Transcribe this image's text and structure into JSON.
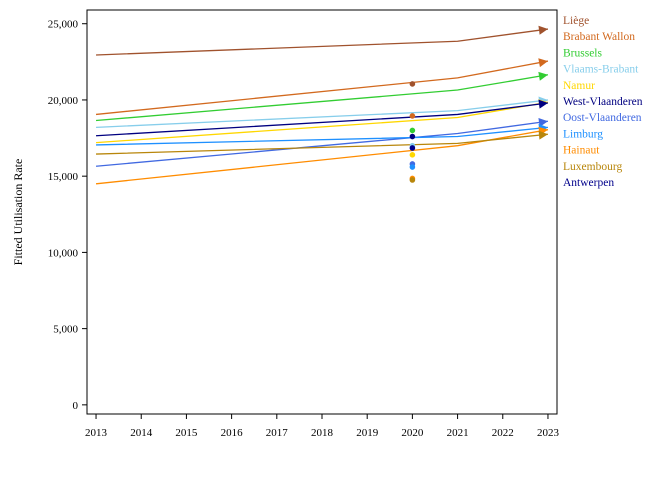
{
  "chart_data": {
    "type": "line",
    "ylabel": "Fitted Utilisation Rate",
    "xlabel": "",
    "ylim": [
      -600,
      25900
    ],
    "xlim": [
      2012.8,
      2023.2
    ],
    "y_ticks": [
      0,
      5000,
      10000,
      15000,
      20000,
      25000
    ],
    "y_tick_labels": [
      "0",
      "5,000",
      "10,000",
      "15,000",
      "20,000",
      "25,000"
    ],
    "x_ticks": [
      2013,
      2014,
      2015,
      2016,
      2017,
      2018,
      2019,
      2020,
      2021,
      2022,
      2023
    ],
    "x_tick_labels": [
      "2013",
      "2014",
      "2015",
      "2016",
      "2017",
      "2018",
      "2019",
      "2020",
      "2021",
      "2022",
      "2023"
    ],
    "grid": false,
    "legend_placement": "right",
    "series": [
      {
        "name": "Liège",
        "color": "#a0522d",
        "x": [
          2013,
          2021,
          2023
        ],
        "y": [
          22950,
          23850,
          24650
        ],
        "point_2020": 21050
      },
      {
        "name": "Brabant Wallon",
        "color": "#d2691e",
        "x": [
          2013,
          2021,
          2023
        ],
        "y": [
          19050,
          21450,
          22550
        ],
        "point_2020": 18950
      },
      {
        "name": "Brussels",
        "color": "#32cd32",
        "x": [
          2013,
          2021,
          2023
        ],
        "y": [
          18650,
          20650,
          21650
        ],
        "point_2020": 18000
      },
      {
        "name": "Vlaams-Brabant",
        "color": "#87ceeb",
        "x": [
          2013,
          2021,
          2023
        ],
        "y": [
          18200,
          19300,
          20000
        ],
        "point_2020": 17000
      },
      {
        "name": "Namur",
        "color": "#ffd700",
        "x": [
          2013,
          2021,
          2023
        ],
        "y": [
          17200,
          18850,
          19850
        ],
        "point_2020": 16400
      },
      {
        "name": "West-Vlaanderen",
        "color": "#000080",
        "x": [
          2013,
          2021,
          2023
        ],
        "y": [
          17650,
          19050,
          19800
        ],
        "point_2020": 17600
      },
      {
        "name": "Oost-Vlaanderen",
        "color": "#4169e1",
        "x": [
          2013,
          2021,
          2023
        ],
        "y": [
          15650,
          17800,
          18600
        ],
        "point_2020": 15800
      },
      {
        "name": "Limburg",
        "color": "#1e90ff",
        "x": [
          2013,
          2021,
          2023
        ],
        "y": [
          17050,
          17600,
          18200
        ],
        "point_2020": 15600
      },
      {
        "name": "Hainaut",
        "color": "#ff8c00",
        "x": [
          2013,
          2021,
          2023
        ],
        "y": [
          14500,
          17000,
          18050
        ],
        "point_2020": 14850
      },
      {
        "name": "Luxembourg",
        "color": "#b8860b",
        "x": [
          2013,
          2021,
          2023
        ],
        "y": [
          16450,
          17150,
          17750
        ],
        "point_2020": 14750
      },
      {
        "name": "Antwerpen",
        "color": "#00008b",
        "x": [],
        "y": [],
        "point_2020": 16850
      }
    ]
  }
}
